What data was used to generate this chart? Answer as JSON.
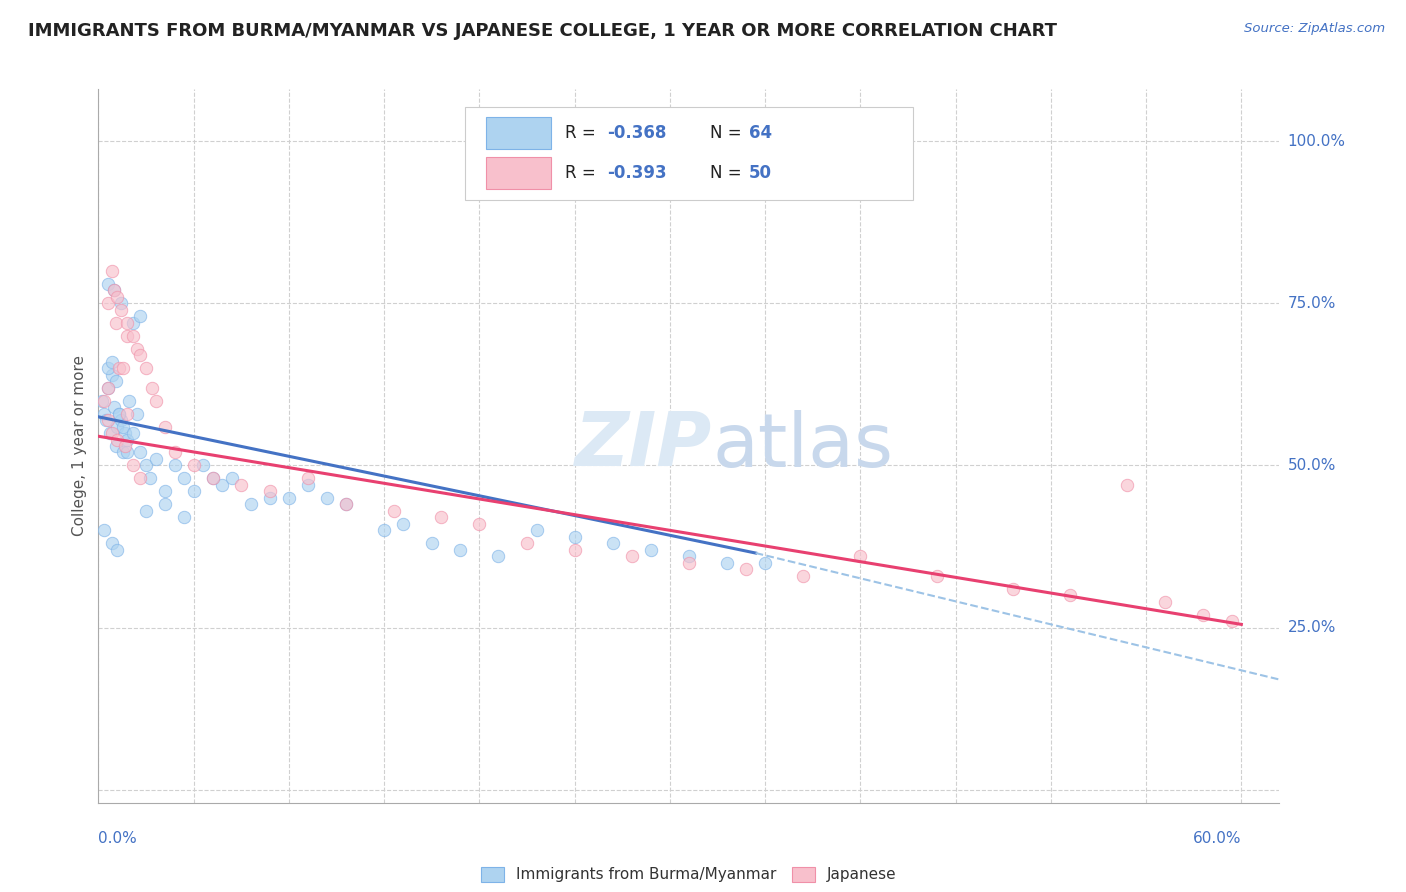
{
  "title": "IMMIGRANTS FROM BURMA/MYANMAR VS JAPANESE COLLEGE, 1 YEAR OR MORE CORRELATION CHART",
  "source_text": "Source: ZipAtlas.com",
  "ylabel_label": "College, 1 year or more",
  "xlim": [
    0.0,
    0.62
  ],
  "ylim": [
    -0.02,
    1.08
  ],
  "yticks": [
    0.0,
    0.25,
    0.5,
    0.75,
    1.0
  ],
  "xtick_labels_show": [
    "0.0%",
    "60.0%"
  ],
  "right_labels": [
    [
      1.0,
      "100.0%"
    ],
    [
      0.75,
      "75.0%"
    ],
    [
      0.5,
      "50.0%"
    ],
    [
      0.25,
      "25.0%"
    ]
  ],
  "legend_entries": [
    {
      "color_fill": "#AED3F0",
      "color_edge": "#7EB3E8",
      "r": "-0.368",
      "n": "64"
    },
    {
      "color_fill": "#F8C0CC",
      "color_edge": "#F09AAA",
      "r": "-0.393",
      "n": "50"
    }
  ],
  "blue_scatter": {
    "x": [
      0.002,
      0.003,
      0.004,
      0.005,
      0.006,
      0.007,
      0.008,
      0.009,
      0.01,
      0.011,
      0.012,
      0.013,
      0.014,
      0.015,
      0.016,
      0.005,
      0.007,
      0.009,
      0.011,
      0.013,
      0.015,
      0.018,
      0.02,
      0.022,
      0.025,
      0.027,
      0.03,
      0.035,
      0.04,
      0.045,
      0.05,
      0.055,
      0.06,
      0.065,
      0.07,
      0.08,
      0.09,
      0.1,
      0.11,
      0.12,
      0.13,
      0.15,
      0.16,
      0.175,
      0.19,
      0.21,
      0.23,
      0.25,
      0.27,
      0.29,
      0.31,
      0.33,
      0.35,
      0.025,
      0.035,
      0.045,
      0.005,
      0.008,
      0.012,
      0.018,
      0.022,
      0.003,
      0.007,
      0.01
    ],
    "y": [
      0.6,
      0.58,
      0.57,
      0.62,
      0.55,
      0.64,
      0.59,
      0.53,
      0.56,
      0.58,
      0.57,
      0.52,
      0.55,
      0.54,
      0.6,
      0.65,
      0.66,
      0.63,
      0.58,
      0.56,
      0.52,
      0.55,
      0.58,
      0.52,
      0.5,
      0.48,
      0.51,
      0.46,
      0.5,
      0.48,
      0.46,
      0.5,
      0.48,
      0.47,
      0.48,
      0.44,
      0.45,
      0.45,
      0.47,
      0.45,
      0.44,
      0.4,
      0.41,
      0.38,
      0.37,
      0.36,
      0.4,
      0.39,
      0.38,
      0.37,
      0.36,
      0.35,
      0.35,
      0.43,
      0.44,
      0.42,
      0.78,
      0.77,
      0.75,
      0.72,
      0.73,
      0.4,
      0.38,
      0.37
    ]
  },
  "pink_scatter": {
    "x": [
      0.003,
      0.005,
      0.007,
      0.009,
      0.011,
      0.013,
      0.015,
      0.005,
      0.008,
      0.01,
      0.012,
      0.015,
      0.018,
      0.02,
      0.022,
      0.025,
      0.028,
      0.03,
      0.035,
      0.04,
      0.05,
      0.06,
      0.075,
      0.09,
      0.11,
      0.13,
      0.155,
      0.18,
      0.2,
      0.225,
      0.25,
      0.28,
      0.31,
      0.34,
      0.37,
      0.4,
      0.44,
      0.48,
      0.51,
      0.54,
      0.56,
      0.58,
      0.595,
      0.007,
      0.01,
      0.014,
      0.018,
      0.022,
      0.005,
      0.015
    ],
    "y": [
      0.6,
      0.62,
      0.8,
      0.72,
      0.65,
      0.65,
      0.7,
      0.75,
      0.77,
      0.76,
      0.74,
      0.72,
      0.7,
      0.68,
      0.67,
      0.65,
      0.62,
      0.6,
      0.56,
      0.52,
      0.5,
      0.48,
      0.47,
      0.46,
      0.48,
      0.44,
      0.43,
      0.42,
      0.41,
      0.38,
      0.37,
      0.36,
      0.35,
      0.34,
      0.33,
      0.36,
      0.33,
      0.31,
      0.3,
      0.47,
      0.29,
      0.27,
      0.26,
      0.55,
      0.54,
      0.53,
      0.5,
      0.48,
      0.57,
      0.58
    ]
  },
  "blue_line": {
    "x": [
      0.0,
      0.345
    ],
    "y": [
      0.575,
      0.365
    ]
  },
  "pink_line": {
    "x": [
      0.0,
      0.6
    ],
    "y": [
      0.545,
      0.255
    ]
  },
  "blue_dashed": {
    "x": [
      0.345,
      0.62
    ],
    "y": [
      0.365,
      0.17
    ]
  },
  "blue_line_color": "#4472c4",
  "pink_line_color": "#e84070",
  "blue_dashed_color": "#9dc3e6",
  "blue_fill": "#AED3F0",
  "blue_edge": "#7EB3E8",
  "pink_fill": "#F8C0CC",
  "pink_edge": "#F090A8",
  "scatter_size": 80,
  "scatter_alpha": 0.65,
  "watermark_color": "#dce9f5",
  "grid_color": "#d0d0d0",
  "axis_color": "#4472c4",
  "title_color": "#222222",
  "source_color": "#4472c4",
  "legend_r_color": "#222222",
  "legend_n_color": "#4472c4"
}
